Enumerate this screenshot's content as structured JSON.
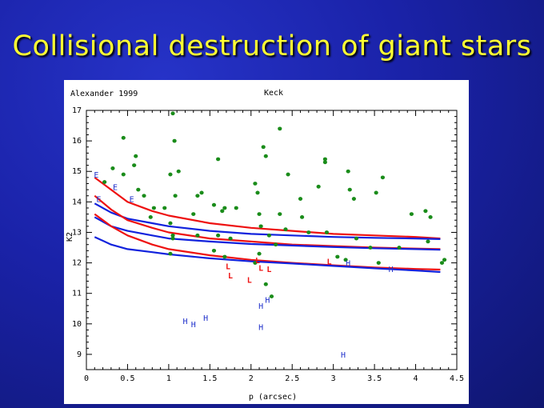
{
  "slide": {
    "title": "Collisional destruction of giant stars"
  },
  "chart_data": {
    "type": "scatter",
    "annotation_left": "Alexander 1999",
    "annotation_center": "Keck",
    "xlabel": "p (arcsec)",
    "ylabel": "K2",
    "xlim": [
      0,
      4.5
    ],
    "ylim": [
      8.5,
      17
    ],
    "xticks": [
      "0",
      "0.5",
      "1",
      "1.5",
      "2",
      "2.5",
      "3",
      "3.5",
      "4",
      "4.5"
    ],
    "yticks": [
      "9",
      "10",
      "11",
      "12",
      "13",
      "14",
      "15",
      "16",
      "17"
    ],
    "colors": {
      "dots": "#1a8c1a",
      "red_curves": "#ee1111",
      "blue_curves": "#1122dd",
      "blue_letters": "#2233cc",
      "red_letters": "#ee1111"
    },
    "green_points": [
      [
        0.22,
        14.65
      ],
      [
        0.32,
        15.1
      ],
      [
        0.45,
        16.1
      ],
      [
        0.45,
        14.9
      ],
      [
        0.58,
        15.2
      ],
      [
        0.6,
        15.5
      ],
      [
        0.63,
        14.4
      ],
      [
        0.7,
        14.2
      ],
      [
        0.78,
        13.5
      ],
      [
        0.82,
        13.8
      ],
      [
        0.95,
        13.8
      ],
      [
        1.02,
        14.9
      ],
      [
        1.05,
        16.9
      ],
      [
        1.07,
        16.0
      ],
      [
        1.08,
        14.2
      ],
      [
        1.12,
        15.0
      ],
      [
        1.02,
        13.3
      ],
      [
        1.05,
        12.8
      ],
      [
        1.05,
        12.9
      ],
      [
        1.02,
        12.3
      ],
      [
        1.3,
        13.6
      ],
      [
        1.35,
        14.2
      ],
      [
        1.4,
        14.3
      ],
      [
        1.55,
        13.9
      ],
      [
        1.6,
        15.4
      ],
      [
        1.65,
        13.7
      ],
      [
        1.68,
        13.8
      ],
      [
        1.35,
        12.9
      ],
      [
        1.6,
        12.9
      ],
      [
        1.75,
        12.8
      ],
      [
        1.55,
        12.4
      ],
      [
        1.68,
        12.2
      ],
      [
        1.82,
        13.8
      ],
      [
        2.05,
        14.6
      ],
      [
        2.08,
        14.3
      ],
      [
        2.1,
        13.6
      ],
      [
        2.12,
        13.2
      ],
      [
        2.05,
        12.0
      ],
      [
        2.1,
        12.3
      ],
      [
        2.15,
        15.8
      ],
      [
        2.18,
        15.5
      ],
      [
        2.22,
        12.9
      ],
      [
        2.18,
        11.3
      ],
      [
        2.25,
        10.9
      ],
      [
        2.35,
        16.4
      ],
      [
        2.35,
        13.6
      ],
      [
        2.3,
        12.6
      ],
      [
        2.42,
        13.1
      ],
      [
        2.45,
        14.9
      ],
      [
        2.6,
        14.1
      ],
      [
        2.62,
        13.5
      ],
      [
        2.7,
        13.0
      ],
      [
        2.82,
        14.5
      ],
      [
        2.9,
        15.4
      ],
      [
        2.9,
        15.3
      ],
      [
        2.92,
        13.0
      ],
      [
        3.05,
        12.2
      ],
      [
        3.15,
        12.1
      ],
      [
        3.18,
        15.0
      ],
      [
        3.2,
        14.4
      ],
      [
        3.25,
        14.1
      ],
      [
        3.28,
        12.8
      ],
      [
        3.45,
        12.5
      ],
      [
        3.52,
        14.3
      ],
      [
        3.55,
        12.0
      ],
      [
        3.6,
        14.8
      ],
      [
        3.8,
        12.5
      ],
      [
        3.95,
        13.6
      ],
      [
        4.12,
        13.7
      ],
      [
        4.18,
        13.5
      ],
      [
        4.15,
        12.7
      ],
      [
        4.32,
        12.0
      ],
      [
        4.35,
        12.1
      ]
    ],
    "letter_points": [
      {
        "label": "E",
        "x": 0.12,
        "y": 14.9,
        "color": "blue"
      },
      {
        "label": "E",
        "x": 0.35,
        "y": 14.5,
        "color": "blue"
      },
      {
        "label": "E",
        "x": 0.15,
        "y": 14.1,
        "color": "blue"
      },
      {
        "label": "E",
        "x": 0.55,
        "y": 14.1,
        "color": "blue"
      },
      {
        "label": "L",
        "x": 1.72,
        "y": 11.9,
        "color": "red"
      },
      {
        "label": "L",
        "x": 1.75,
        "y": 11.6,
        "color": "red"
      },
      {
        "label": "L",
        "x": 2.08,
        "y": 12.1,
        "color": "red"
      },
      {
        "label": "L",
        "x": 2.12,
        "y": 11.85,
        "color": "red"
      },
      {
        "label": "L",
        "x": 1.98,
        "y": 11.45,
        "color": "red"
      },
      {
        "label": "L",
        "x": 2.22,
        "y": 11.8,
        "color": "red"
      },
      {
        "label": "L",
        "x": 2.95,
        "y": 12.05,
        "color": "red"
      },
      {
        "label": "H",
        "x": 3.18,
        "y": 12.0,
        "color": "blue"
      },
      {
        "label": "H",
        "x": 3.7,
        "y": 11.8,
        "color": "blue"
      },
      {
        "label": "H",
        "x": 1.2,
        "y": 10.1,
        "color": "blue"
      },
      {
        "label": "H",
        "x": 1.3,
        "y": 10.0,
        "color": "blue"
      },
      {
        "label": "H",
        "x": 1.45,
        "y": 10.2,
        "color": "blue"
      },
      {
        "label": "H",
        "x": 2.12,
        "y": 10.6,
        "color": "blue"
      },
      {
        "label": "H",
        "x": 2.2,
        "y": 10.8,
        "color": "blue"
      },
      {
        "label": "H",
        "x": 2.12,
        "y": 9.9,
        "color": "blue"
      },
      {
        "label": "H",
        "x": 3.12,
        "y": 9.0,
        "color": "blue"
      }
    ],
    "series": [
      {
        "name": "red curve 1",
        "color": "red",
        "x": [
          0.1,
          0.3,
          0.5,
          0.8,
          1.0,
          1.5,
          2.0,
          2.5,
          3.0,
          3.5,
          4.0,
          4.3
        ],
        "y": [
          14.8,
          14.4,
          14.0,
          13.7,
          13.55,
          13.3,
          13.15,
          13.05,
          12.95,
          12.9,
          12.85,
          12.8
        ]
      },
      {
        "name": "blue curve 1",
        "color": "blue",
        "x": [
          0.1,
          0.3,
          0.5,
          0.8,
          1.0,
          1.5,
          2.0,
          2.5,
          3.0,
          3.5,
          4.0,
          4.3
        ],
        "y": [
          13.95,
          13.65,
          13.45,
          13.3,
          13.2,
          13.05,
          12.95,
          12.9,
          12.85,
          12.82,
          12.8,
          12.78
        ]
      },
      {
        "name": "red curve 2",
        "color": "red",
        "x": [
          0.1,
          0.3,
          0.5,
          0.8,
          1.0,
          1.5,
          2.0,
          2.5,
          3.0,
          3.5,
          4.0,
          4.3
        ],
        "y": [
          14.2,
          13.75,
          13.4,
          13.15,
          13.0,
          12.8,
          12.7,
          12.6,
          12.55,
          12.5,
          12.47,
          12.45
        ]
      },
      {
        "name": "blue curve 2",
        "color": "blue",
        "x": [
          0.1,
          0.3,
          0.5,
          0.8,
          1.0,
          1.5,
          2.0,
          2.5,
          3.0,
          3.5,
          4.0,
          4.3
        ],
        "y": [
          13.5,
          13.2,
          13.05,
          12.9,
          12.8,
          12.7,
          12.62,
          12.57,
          12.52,
          12.48,
          12.45,
          12.43
        ]
      },
      {
        "name": "red curve 3",
        "color": "red",
        "x": [
          0.1,
          0.3,
          0.5,
          0.8,
          1.0,
          1.5,
          2.0,
          2.5,
          3.0,
          3.5,
          4.0,
          4.3
        ],
        "y": [
          13.6,
          13.2,
          12.9,
          12.6,
          12.45,
          12.25,
          12.1,
          12.0,
          11.92,
          11.85,
          11.8,
          11.78
        ]
      },
      {
        "name": "blue curve 3",
        "color": "blue",
        "x": [
          0.1,
          0.3,
          0.5,
          0.8,
          1.0,
          1.5,
          2.0,
          2.5,
          3.0,
          3.5,
          4.0,
          4.3
        ],
        "y": [
          12.85,
          12.6,
          12.45,
          12.35,
          12.28,
          12.15,
          12.05,
          11.98,
          11.9,
          11.82,
          11.75,
          11.7
        ]
      }
    ]
  }
}
